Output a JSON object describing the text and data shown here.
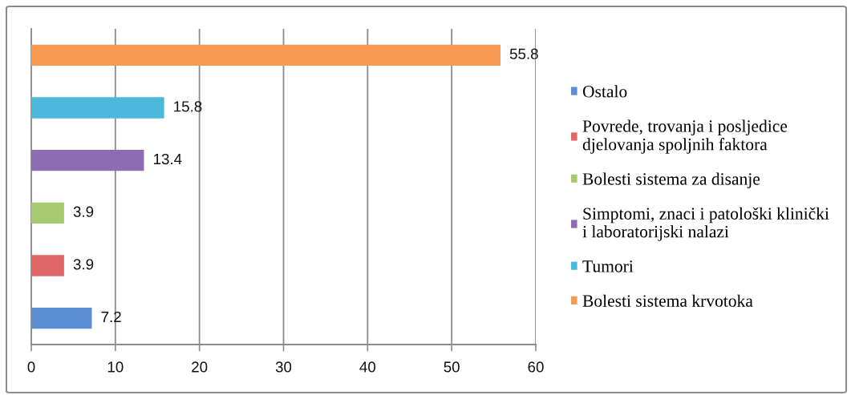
{
  "chart_data": {
    "type": "bar",
    "orientation": "horizontal",
    "categories": [
      null
    ],
    "series": [
      {
        "name": "Ostalo",
        "color": "#5b8ed2",
        "values": [
          7.2
        ]
      },
      {
        "name": "Povrede, trovanja i posljedice\ndjelovanja spoljnih faktora",
        "color": "#e06868",
        "values": [
          3.9
        ]
      },
      {
        "name": "Bolesti sistema za disanje",
        "color": "#a6ca6e",
        "values": [
          3.9
        ]
      },
      {
        "name": "Simptomi, znaci i patološki klinički\ni laboratorijski nalazi",
        "color": "#8c6db4",
        "values": [
          13.4
        ]
      },
      {
        "name": "Tumori",
        "color": "#4db8dc",
        "values": [
          15.8
        ]
      },
      {
        "name": "Bolesti sistema krvotoka",
        "color": "#f79a52",
        "values": [
          55.8
        ]
      }
    ],
    "xlim": [
      0,
      60
    ],
    "xticks": [
      0,
      10,
      20,
      30,
      40,
      50,
      60
    ],
    "grid": "x",
    "legend": "right",
    "data_labels": true,
    "tick_labels": "x"
  }
}
